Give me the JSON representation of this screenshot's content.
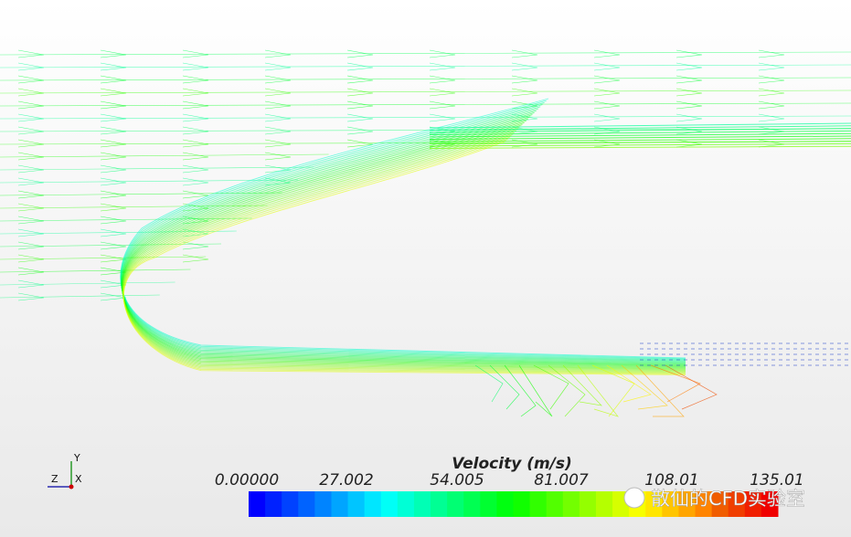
{
  "legend": {
    "title": "Velocity (m/s)",
    "ticks": [
      "0.00000",
      "27.002",
      "54.005",
      "81.007",
      "108.01",
      "135.01"
    ]
  },
  "triad": {
    "y": "Y",
    "z": "Z",
    "x": "X"
  },
  "watermark": "散仙的CFD实验室"
}
